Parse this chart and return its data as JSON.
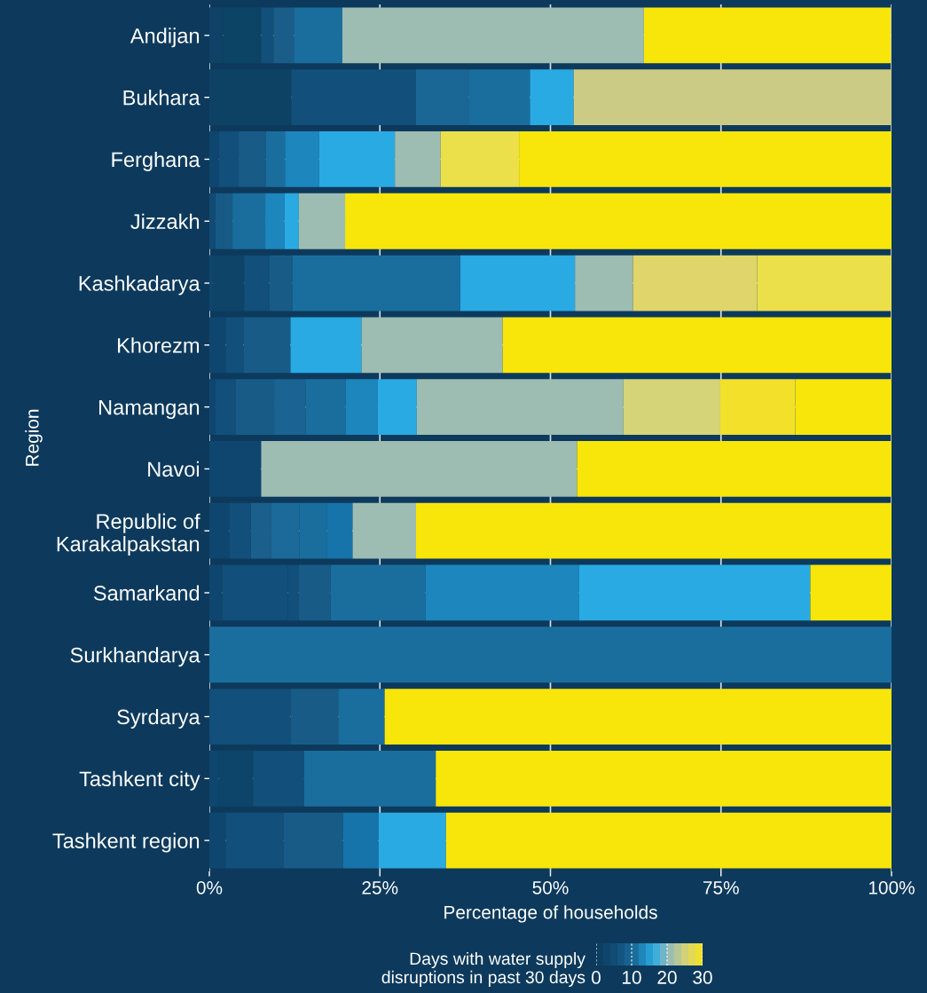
{
  "chart_data": {
    "type": "bar",
    "orientation": "horizontal",
    "stacked": true,
    "legend": false,
    "grid": true,
    "xlabel": "Percentage of households",
    "ylabel": "Region",
    "clabel": "Days with water supply\ndisruptions in past 30 days",
    "clim": [
      0,
      30
    ],
    "cticks": [
      0,
      10,
      20,
      30
    ],
    "categories": [
      "Andijan",
      "Bukhara",
      "Ferghana",
      "Jizzakh",
      "Kashkadarya",
      "Khorezm",
      "Namangan",
      "Navoi",
      "Republic of\nKarakalpakstan",
      "Samarkand",
      "Surkhandarya",
      "Syrdarya",
      "Tashkent city",
      "Tashkent region"
    ],
    "xlim": [
      0,
      100
    ],
    "xticks": [
      {
        "value": 0,
        "label": "0%"
      },
      {
        "value": 25,
        "label": "25%"
      },
      {
        "value": 50,
        "label": "50%"
      },
      {
        "value": 75,
        "label": "75%"
      },
      {
        "value": 100,
        "label": "100%"
      }
    ],
    "series": [
      {
        "values": [
          2.0,
          12.0,
          1.4,
          0.9,
          0.5,
          2.4,
          0.9,
          7.6,
          2.9,
          1.9,
          100,
          11.9,
          1.4,
          2.4
        ],
        "colors": [
          "#0f4266",
          "#0d4265",
          "#0f4670",
          "#114a73",
          "#0f4670",
          "#0f4670",
          "#0f4670",
          "#0f4670",
          "#0f4670",
          "#0f4670",
          "#1a6e9e",
          "#124f7a",
          "#0f4670",
          "#0f4670"
        ]
      },
      {
        "values": [
          5.6,
          18.3,
          2.9,
          1.3,
          4.6,
          2.6,
          3.0,
          46.3,
          3.2,
          9.6,
          null,
          7.0,
          5.0,
          8.5
        ],
        "colors": [
          "#0c4466",
          "#124f7a",
          "#124f7a",
          "#175a86",
          "#0d4468",
          "#124f7a",
          "#124f7a",
          "#9dbdb2",
          "#124f7a",
          "#124f7a",
          "#cccccc",
          "#185b87",
          "#0d456a",
          "#124f7a"
        ]
      },
      {
        "values": [
          1.8,
          7.7,
          4.0,
          1.2,
          3.7,
          6.9,
          5.6,
          46.1,
          3.0,
          1.6,
          null,
          6.8,
          7.5,
          8.7
        ],
        "colors": [
          "#12507a",
          "#1a6795",
          "#185b87",
          "#185b87",
          "#124f7a",
          "#185b87",
          "#185b87",
          "#f8e60a",
          "#1b5f8c",
          "#124f7a",
          "#cccccc",
          "#1a6e9e",
          "#124f7a",
          "#185b87"
        ]
      },
      {
        "values": [
          3.0,
          9.0,
          2.8,
          4.8,
          3.4,
          10.4,
          4.6,
          null,
          4.1,
          4.7,
          null,
          74.3,
          19.3,
          5.2
        ],
        "colors": [
          "#1a5d89",
          "#1a6e9e",
          "#1a6e9e",
          "#1a6e9e",
          "#185b87",
          "#29aae2",
          "#1b6393",
          "#cccccc",
          "#1b6a9a",
          "#185b87",
          "#cccccc",
          "#f8e60a",
          "#1a6e9e",
          "#1674aa"
        ]
      },
      {
        "values": [
          7.1,
          6.4,
          5.0,
          2.8,
          24.6,
          20.7,
          5.9,
          null,
          4.0,
          13.9,
          null,
          null,
          66.8,
          9.9
        ],
        "colors": [
          "#1a6e9e",
          "#29aae2",
          "#1d86bd",
          "#1d86bd",
          "#1a6e9e",
          "#9dbdb2",
          "#1a6e9e",
          "#cccccc",
          "#1a6e9e",
          "#1a6e9e",
          "#cccccc",
          "#cccccc",
          "#f8e60a",
          "#29aae2"
        ]
      },
      {
        "values": [
          44.2,
          46.6,
          11.1,
          2.1,
          16.8,
          57.0,
          4.7,
          null,
          3.8,
          22.5,
          null,
          null,
          null,
          65.3
        ],
        "colors": [
          "#9dbdb2",
          "#cccb85",
          "#29aae2",
          "#29aae2",
          "#29aae2",
          "#f8e60a",
          "#1d86bd",
          "#cccccc",
          "#1674aa",
          "#1d86bd",
          "#cccccc",
          "#cccccc",
          "#cccccc",
          "#f8e60a"
        ]
      },
      {
        "values": [
          36.2,
          null,
          6.7,
          6.8,
          8.5,
          null,
          5.7,
          null,
          9.3,
          33.9,
          null,
          null,
          null,
          null
        ],
        "colors": [
          "#f8e60a",
          "#cccccc",
          "#9dbdb2",
          "#9dbdb2",
          "#9dbdb2",
          "#cccccc",
          "#29aae2",
          "#cccccc",
          "#9dbdb2",
          "#29aae2",
          "#cccccc",
          "#cccccc",
          "#cccccc",
          "#cccccc"
        ]
      },
      {
        "values": [
          null,
          null,
          11.5,
          80.1,
          18.2,
          null,
          30.3,
          null,
          69.7,
          11.9,
          null,
          null,
          null,
          null
        ],
        "colors": [
          "#cccccc",
          "#cccccc",
          "#ebe04a",
          "#f8e60a",
          "#dfd56a",
          "#cccccc",
          "#9dbdb2",
          "#cccccc",
          "#f8e60a",
          "#f8e60a",
          "#cccccc",
          "#cccccc",
          "#cccccc",
          "#cccccc"
        ]
      },
      {
        "values": [
          null,
          null,
          54.6,
          null,
          19.7,
          null,
          14.2,
          null,
          null,
          null,
          null,
          null,
          null,
          null
        ],
        "colors": [
          "#cccccc",
          "#cccccc",
          "#f8e60a",
          "#cccccc",
          "#ebe04a",
          "#cccccc",
          "#d6d478",
          "#cccccc",
          "#cccccc",
          "#cccccc",
          "#cccccc",
          "#cccccc",
          "#cccccc",
          "#cccccc"
        ]
      },
      {
        "values": [
          null,
          null,
          null,
          null,
          null,
          null,
          11.0,
          null,
          null,
          null,
          null,
          null,
          null,
          null
        ],
        "colors": [
          "#cccccc",
          "#cccccc",
          "#cccccc",
          "#cccccc",
          "#cccccc",
          "#cccccc",
          "#f2e02a",
          "#cccccc",
          "#cccccc",
          "#cccccc",
          "#cccccc",
          "#cccccc",
          "#cccccc",
          "#cccccc"
        ]
      },
      {
        "values": [
          null,
          null,
          null,
          null,
          null,
          null,
          14.1,
          null,
          null,
          null,
          null,
          null,
          null,
          null
        ],
        "colors": [
          "#cccccc",
          "#cccccc",
          "#cccccc",
          "#cccccc",
          "#cccccc",
          "#cccccc",
          "#f8e60a",
          "#cccccc",
          "#cccccc",
          "#cccccc",
          "#cccccc",
          "#cccccc",
          "#cccccc",
          "#cccccc"
        ]
      }
    ]
  }
}
